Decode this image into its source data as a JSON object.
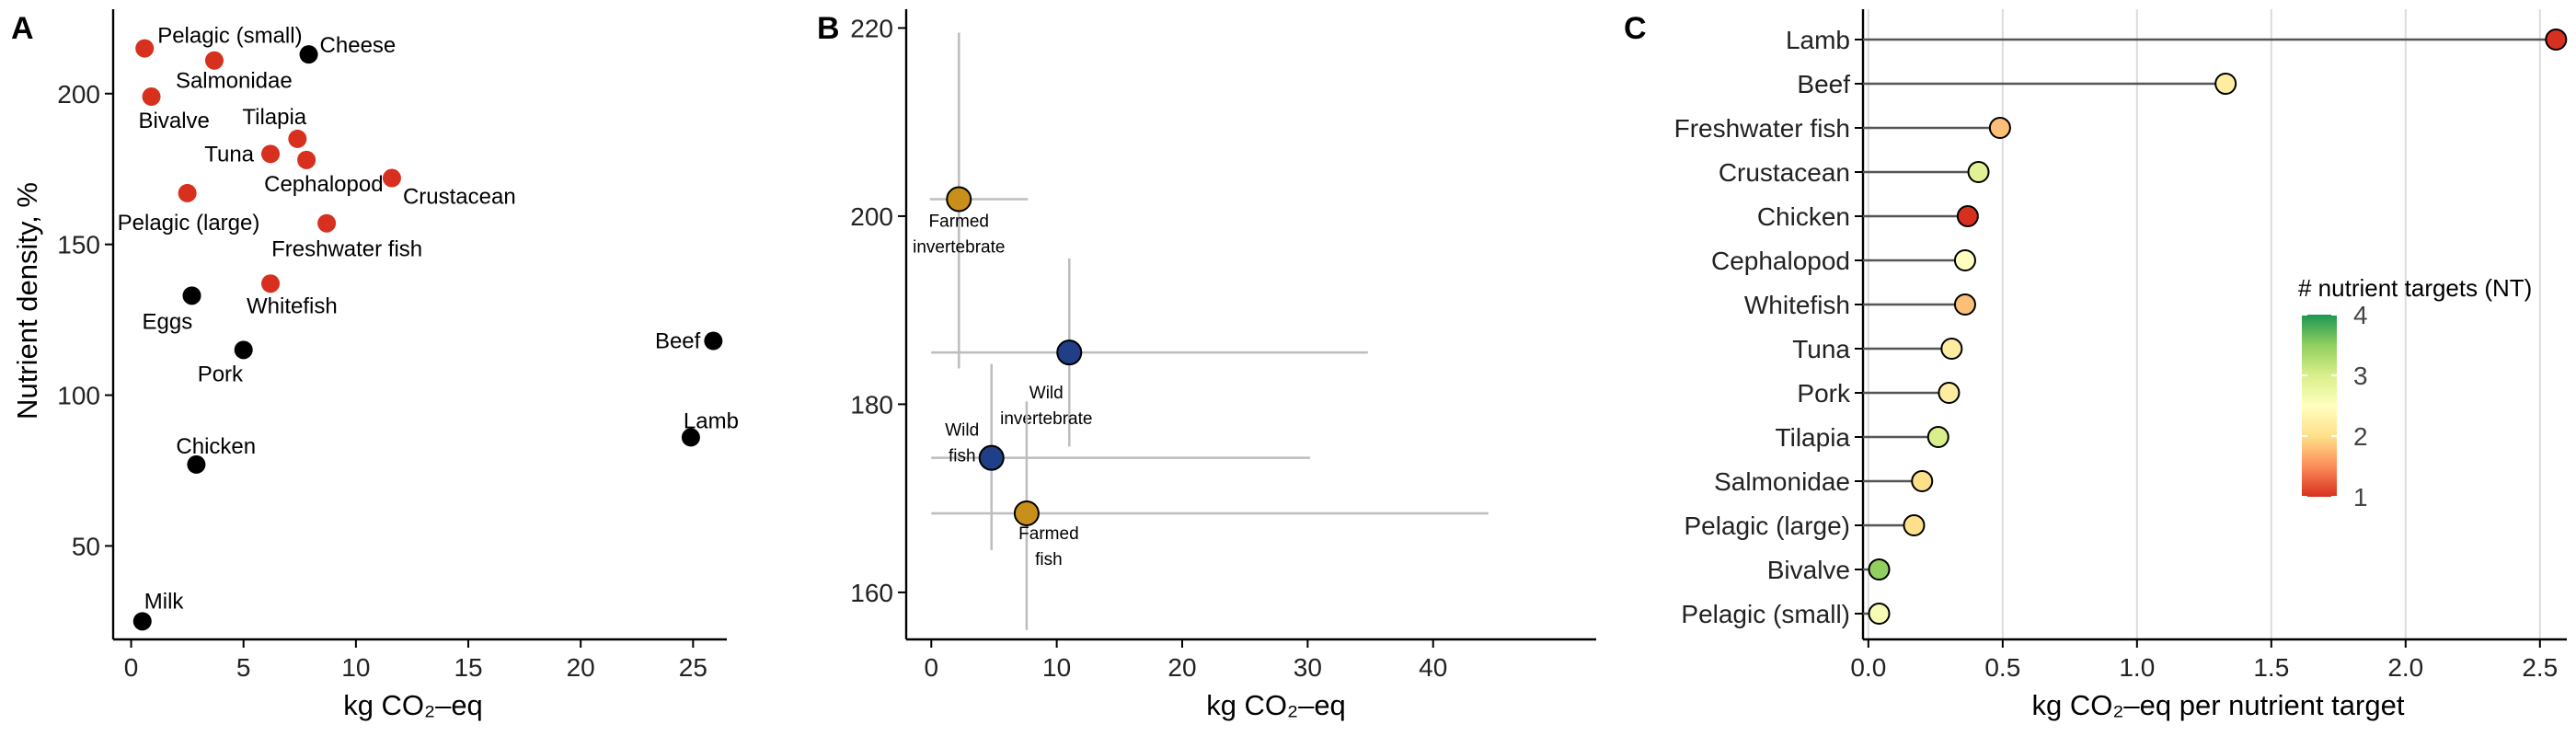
{
  "chart_data": [
    {
      "panel_label": "A",
      "type": "scatter",
      "xlabel": "kg CO₂–eq",
      "ylabel": "Nutrient density, %",
      "xlim": [
        -0.8,
        26.5
      ],
      "ylim": [
        19,
        228
      ],
      "xticks": [
        0,
        5,
        10,
        15,
        20,
        25
      ],
      "yticks": [
        50,
        100,
        150,
        200
      ],
      "grid": false,
      "colors": {
        "aquatic": "#d7301f",
        "terrestrial": "#000000"
      },
      "points": [
        {
          "label": "Pelagic (small)",
          "x": 0.6,
          "y": 215,
          "group": "aquatic"
        },
        {
          "label": "Salmonidae",
          "x": 3.7,
          "y": 211,
          "group": "aquatic"
        },
        {
          "label": "Bivalve",
          "x": 0.9,
          "y": 199,
          "group": "aquatic"
        },
        {
          "label": "Tilapia",
          "x": 7.4,
          "y": 185,
          "group": "aquatic"
        },
        {
          "label": "Tuna",
          "x": 6.2,
          "y": 180,
          "group": "aquatic"
        },
        {
          "label": "Cephalopod",
          "x": 7.8,
          "y": 178,
          "group": "aquatic"
        },
        {
          "label": "Crustacean",
          "x": 11.6,
          "y": 172,
          "group": "aquatic"
        },
        {
          "label": "Pelagic (large)",
          "x": 2.5,
          "y": 167,
          "group": "aquatic"
        },
        {
          "label": "Freshwater fish",
          "x": 8.7,
          "y": 157,
          "group": "aquatic"
        },
        {
          "label": "Whitefish",
          "x": 6.2,
          "y": 137,
          "group": "aquatic"
        },
        {
          "label": "Cheese",
          "x": 7.9,
          "y": 213,
          "group": "terrestrial"
        },
        {
          "label": "Eggs",
          "x": 2.7,
          "y": 133,
          "group": "terrestrial"
        },
        {
          "label": "Pork",
          "x": 5.0,
          "y": 115,
          "group": "terrestrial"
        },
        {
          "label": "Beef",
          "x": 25.9,
          "y": 118,
          "group": "terrestrial"
        },
        {
          "label": "Lamb",
          "x": 24.9,
          "y": 86,
          "group": "terrestrial"
        },
        {
          "label": "Chicken",
          "x": 2.9,
          "y": 77,
          "group": "terrestrial"
        },
        {
          "label": "Milk",
          "x": 0.5,
          "y": 25,
          "group": "terrestrial"
        }
      ]
    },
    {
      "panel_label": "B",
      "type": "scatter",
      "xlabel": "kg CO₂–eq",
      "ylabel": "",
      "xlim": [
        -2,
        53
      ],
      "ylim": [
        155,
        222
      ],
      "xticks": [
        0,
        10,
        20,
        30,
        40
      ],
      "yticks": [
        160,
        180,
        200,
        220
      ],
      "grid": false,
      "points": [
        {
          "label": [
            "Farmed",
            "invertebrate"
          ],
          "x": 2.2,
          "y": 201.8,
          "x_range": [
            -0.1,
            7.7
          ],
          "y_range": [
            183.8,
            219.5
          ],
          "color": "#c8901a"
        },
        {
          "label": [
            "Wild",
            "invertebrate"
          ],
          "x": 11.0,
          "y": 185.5,
          "x_range": [
            0,
            34.8
          ],
          "y_range": [
            175.5,
            195.5
          ],
          "color": "#213f87"
        },
        {
          "label": [
            "Wild",
            "fish"
          ],
          "x": 4.8,
          "y": 174.3,
          "x_range": [
            0,
            30.2
          ],
          "y_range": [
            164.5,
            184.3
          ],
          "color": "#213f87"
        },
        {
          "label": [
            "Farmed",
            "fish"
          ],
          "x": 7.6,
          "y": 168.4,
          "x_range": [
            0,
            44.4
          ],
          "y_range": [
            156.0,
            180.3
          ],
          "color": "#c8901a"
        }
      ]
    },
    {
      "panel_label": "C",
      "type": "lollipop",
      "xlabel": "kg CO₂–eq per nutrient target",
      "xlim": [
        -0.02,
        2.6
      ],
      "xticks": [
        0.0,
        0.5,
        1.0,
        1.5,
        2.0,
        2.5
      ],
      "grid": true,
      "categories": [
        "Lamb",
        "Beef",
        "Freshwater fish",
        "Crustacean",
        "Chicken",
        "Cephalopod",
        "Whitefish",
        "Tuna",
        "Pork",
        "Tilapia",
        "Salmonidae",
        "Pelagic (large)",
        "Bivalve",
        "Pelagic (small)"
      ],
      "values": [
        2.56,
        1.33,
        0.49,
        0.41,
        0.37,
        0.36,
        0.36,
        0.31,
        0.3,
        0.26,
        0.2,
        0.17,
        0.04,
        0.04
      ],
      "nutrient_targets": [
        1.0,
        2.2,
        1.8,
        2.9,
        1.0,
        2.5,
        1.8,
        2.2,
        2.2,
        3.0,
        2.0,
        2.0,
        3.5,
        2.6
      ],
      "legend": {
        "title": "# nutrient targets (NT)",
        "ticks": [
          1,
          2,
          3,
          4
        ],
        "range": [
          1,
          4
        ],
        "colors": [
          "#d7301f",
          "#fc8d59",
          "#fee08b",
          "#ffffbf",
          "#d9ef8b",
          "#91cf60",
          "#1a9850"
        ],
        "placement": "right"
      }
    }
  ]
}
